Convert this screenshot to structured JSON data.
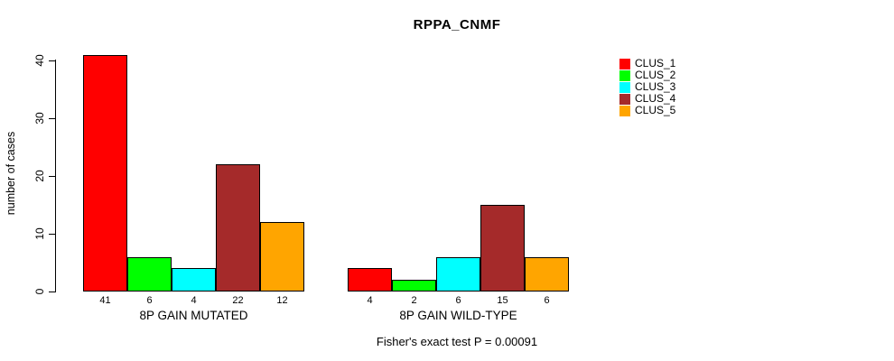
{
  "chart_data": {
    "type": "bar",
    "grouped": true,
    "title": "RPPA_CNMF",
    "xlabel": "",
    "ylabel": "number of cases",
    "ylim": [
      0,
      41
    ],
    "yticks": [
      0,
      10,
      20,
      30,
      40
    ],
    "grid": false,
    "bar_value_labels": true,
    "legend_position": "top-right",
    "categories": [
      "8P GAIN MUTATED",
      "8P GAIN WILD-TYPE"
    ],
    "series": [
      {
        "name": "CLUS_1",
        "color": "#ff0000",
        "values": [
          41,
          4
        ]
      },
      {
        "name": "CLUS_2",
        "color": "#00ff00",
        "values": [
          6,
          2
        ]
      },
      {
        "name": "CLUS_3",
        "color": "#00ffff",
        "values": [
          4,
          6
        ]
      },
      {
        "name": "CLUS_4",
        "color": "#a52a2a",
        "values": [
          22,
          15
        ]
      },
      {
        "name": "CLUS_5",
        "color": "#ffa500",
        "values": [
          12,
          6
        ]
      }
    ],
    "footnote": "Fisher's exact test P = 0.00091"
  }
}
